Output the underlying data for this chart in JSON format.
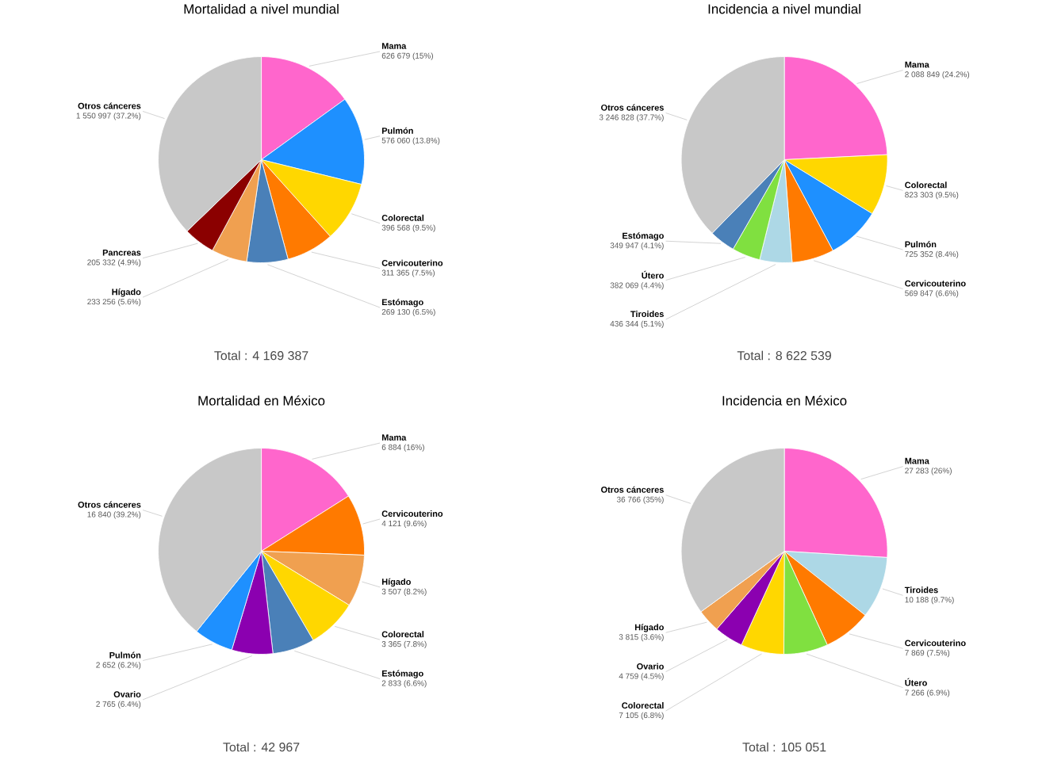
{
  "chart_data": [
    {
      "type": "pie",
      "title": "Mortalidad a nivel mundial",
      "categories": [
        "Mama",
        "Pulmón",
        "Colorectal",
        "Cervicouterino",
        "Estómago",
        "Hígado",
        "Pancreas",
        "Otros cánceres"
      ],
      "values": [
        626679,
        576060,
        396568,
        311365,
        269130,
        233256,
        205332,
        1550997
      ],
      "colors": [
        "#ff66cc",
        "#1e90ff",
        "#ffd700",
        "#ff7a00",
        "#4a80b8",
        "#f0a050",
        "#8b0000",
        "#c8c8c8"
      ],
      "value_labels": [
        "626 679 (15%)",
        "576 060 (13.8%)",
        "396 568 (9.5%)",
        "311 365 (7.5%)",
        "269 130 (6.5%)",
        "233 256 (5.6%)",
        "205 332 (4.9%)",
        "1 550 997 (37.2%)"
      ],
      "annotations": [
        "Total : 4 169 387"
      ]
    },
    {
      "type": "pie",
      "title": "Incidencia a nivel mundial",
      "categories": [
        "Mama",
        "Colorectal",
        "Pulmón",
        "Cervicouterino",
        "Tiroides",
        "Útero",
        "Estómago",
        "Otros cánceres"
      ],
      "values": [
        2088849,
        823303,
        725352,
        569847,
        436344,
        382069,
        349947,
        3246828
      ],
      "colors": [
        "#ff66cc",
        "#ffd700",
        "#1e90ff",
        "#ff7a00",
        "#add8e6",
        "#80e040",
        "#4a80b8",
        "#c8c8c8"
      ],
      "value_labels": [
        "2 088 849 (24.2%)",
        "823 303 (9.5%)",
        "725 352 (8.4%)",
        "569 847 (6.6%)",
        "436 344 (5.1%)",
        "382 069 (4.4%)",
        "349 947 (4.1%)",
        "3 246 828 (37.7%)"
      ],
      "annotations": [
        "Total : 8 622 539"
      ]
    },
    {
      "type": "pie",
      "title": "Mortalidad en México",
      "categories": [
        "Mama",
        "Cervicouterino",
        "Hígado",
        "Colorectal",
        "Estómago",
        "Ovario",
        "Pulmón",
        "Otros cánceres"
      ],
      "values": [
        6884,
        4121,
        3507,
        3365,
        2833,
        2765,
        2652,
        16840
      ],
      "colors": [
        "#ff66cc",
        "#ff7a00",
        "#f0a050",
        "#ffd700",
        "#4a80b8",
        "#8b00b0",
        "#1e90ff",
        "#c8c8c8"
      ],
      "value_labels": [
        "6 884 (16%)",
        "4 121 (9.6%)",
        "3 507 (8.2%)",
        "3 365 (7.8%)",
        "2 833 (6.6%)",
        "2 765 (6.4%)",
        "2 652 (6.2%)",
        "16 840 (39.2%)"
      ],
      "annotations": [
        "Total : 42 967"
      ]
    },
    {
      "type": "pie",
      "title": "Incidencia en México",
      "categories": [
        "Mama",
        "Tiroides",
        "Cervicouterino",
        "Útero",
        "Colorectal",
        "Ovario",
        "Hígado",
        "Otros cánceres"
      ],
      "values": [
        27283,
        10188,
        7869,
        7266,
        7105,
        4759,
        3815,
        36766
      ],
      "colors": [
        "#ff66cc",
        "#add8e6",
        "#ff7a00",
        "#80e040",
        "#ffd700",
        "#8b00b0",
        "#f0a050",
        "#c8c8c8"
      ],
      "value_labels": [
        "27 283 (26%)",
        "10 188 (9.7%)",
        "7 869 (7.5%)",
        "7 266 (6.9%)",
        "7 105 (6.8%)",
        "4 759 (4.5%)",
        "3 815 (3.6%)",
        "36 766 (35%)"
      ],
      "annotations": [
        "Total : 105 051"
      ]
    }
  ]
}
